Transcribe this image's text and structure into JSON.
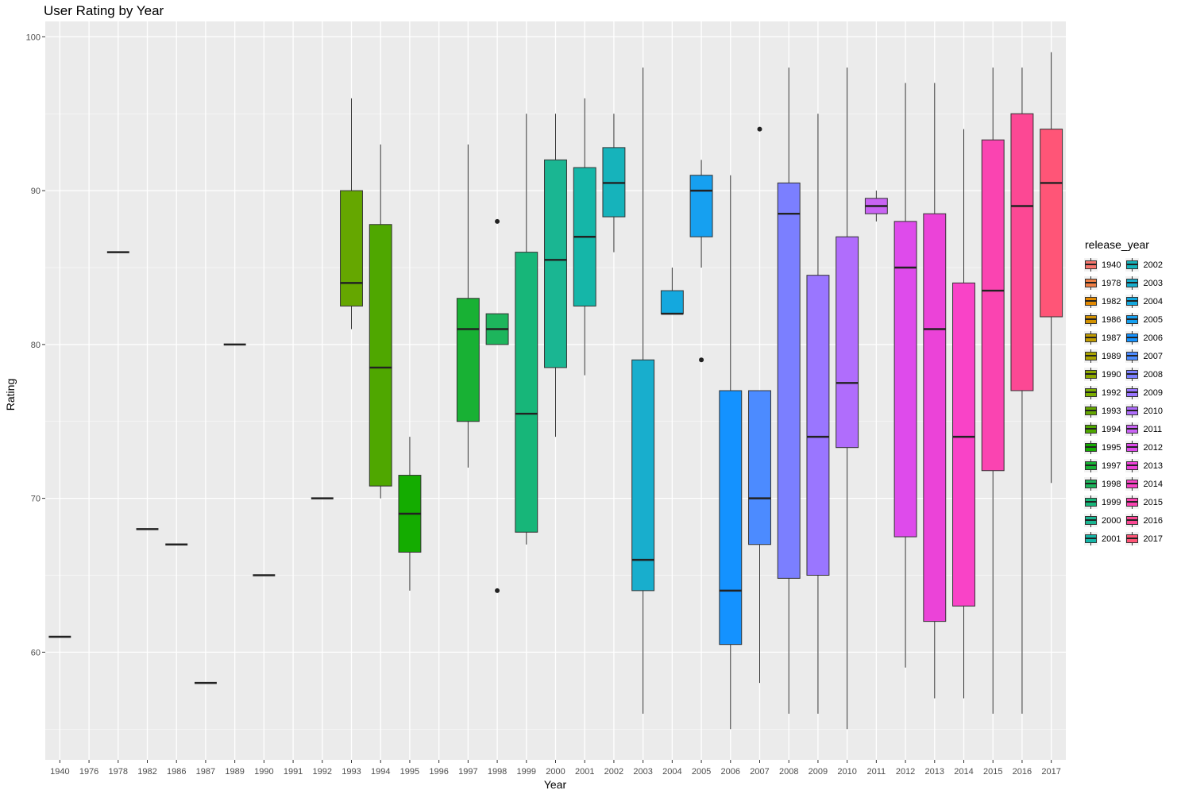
{
  "chart_data": {
    "type": "box",
    "title": "User Rating by Year",
    "xlabel": "Year",
    "ylabel": "Rating",
    "ylim": [
      53,
      101
    ],
    "y_ticks": [
      60,
      70,
      80,
      90,
      100
    ],
    "grid": true,
    "legend_title": "release_year",
    "legend_position": "right",
    "categories": [
      "1940",
      "1976",
      "1978",
      "1982",
      "1986",
      "1987",
      "1989",
      "1990",
      "1991",
      "1992",
      "1993",
      "1994",
      "1995",
      "1996",
      "1997",
      "1998",
      "1999",
      "2000",
      "2001",
      "2002",
      "2003",
      "2004",
      "2005",
      "2006",
      "2007",
      "2008",
      "2009",
      "2010",
      "2011",
      "2012",
      "2013",
      "2014",
      "2015",
      "2016",
      "2017"
    ],
    "legend_entries": [
      "1940",
      "1978",
      "1982",
      "1986",
      "1987",
      "1989",
      "1990",
      "1992",
      "1993",
      "1994",
      "1995",
      "1997",
      "1998",
      "1999",
      "2000",
      "2001",
      "2002",
      "2003",
      "2004",
      "2005",
      "2006",
      "2007",
      "2008",
      "2009",
      "2010",
      "2011",
      "2012",
      "2013",
      "2014",
      "2015",
      "2016",
      "2017"
    ],
    "boxes": [
      {
        "year": "1940",
        "min": 61,
        "q1": 61,
        "median": 61,
        "q3": 61,
        "max": 61,
        "outliers": [],
        "color": "#F8766D"
      },
      {
        "year": "1978",
        "min": 86,
        "q1": 86,
        "median": 86,
        "q3": 86,
        "max": 86,
        "outliers": [],
        "color": "#EF7F45"
      },
      {
        "year": "1982",
        "min": 68,
        "q1": 68,
        "median": 68,
        "q3": 68,
        "max": 68,
        "outliers": [],
        "color": "#E38900"
      },
      {
        "year": "1986",
        "min": 67,
        "q1": 67,
        "median": 67,
        "q3": 67,
        "max": 67,
        "outliers": [],
        "color": "#D39200"
      },
      {
        "year": "1987",
        "min": 58,
        "q1": 58,
        "median": 58,
        "q3": 58,
        "max": 58,
        "outliers": [],
        "color": "#C09B00"
      },
      {
        "year": "1989",
        "min": 80,
        "q1": 80,
        "median": 80,
        "q3": 80,
        "max": 80,
        "outliers": [],
        "color": "#AAA300"
      },
      {
        "year": "1990",
        "min": 65,
        "q1": 65,
        "median": 65,
        "q3": 65,
        "max": 65,
        "outliers": [],
        "color": "#8EA800"
      },
      {
        "year": "1992",
        "min": 70,
        "q1": 70,
        "median": 70,
        "q3": 70,
        "max": 70,
        "outliers": [],
        "color": "#7CAE00"
      },
      {
        "year": "1993",
        "min": 81,
        "q1": 82.5,
        "median": 84,
        "q3": 90,
        "max": 96,
        "outliers": [],
        "color": "#65A700"
      },
      {
        "year": "1994",
        "min": 70,
        "q1": 70.8,
        "median": 78.5,
        "q3": 87.8,
        "max": 93,
        "outliers": [],
        "color": "#4FA700"
      },
      {
        "year": "1995",
        "min": 64,
        "q1": 66.5,
        "median": 69,
        "q3": 71.5,
        "max": 74,
        "outliers": [],
        "color": "#14AC00"
      },
      {
        "year": "1997",
        "min": 72,
        "q1": 75,
        "median": 81,
        "q3": 83,
        "max": 93,
        "outliers": [],
        "color": "#18B134"
      },
      {
        "year": "1998",
        "min": 80,
        "q1": 80,
        "median": 81,
        "q3": 82,
        "max": 82,
        "outliers": [
          64,
          88
        ],
        "color": "#1DB55C"
      },
      {
        "year": "1999",
        "min": 67,
        "q1": 67.8,
        "median": 75.5,
        "q3": 86,
        "max": 95,
        "outliers": [],
        "color": "#17B679"
      },
      {
        "year": "2000",
        "min": 74,
        "q1": 78.5,
        "median": 85.5,
        "q3": 92,
        "max": 95,
        "outliers": [],
        "color": "#1AB692"
      },
      {
        "year": "2001",
        "min": 78,
        "q1": 82.5,
        "median": 87,
        "q3": 91.5,
        "max": 96,
        "outliers": [],
        "color": "#15B6A8"
      },
      {
        "year": "2002",
        "min": 86,
        "q1": 88.3,
        "median": 90.5,
        "q3": 92.8,
        "max": 95,
        "outliers": [],
        "color": "#16B3BB"
      },
      {
        "year": "2003",
        "min": 56,
        "q1": 64,
        "median": 66,
        "q3": 79,
        "max": 98,
        "outliers": [],
        "color": "#18AECD"
      },
      {
        "year": "2004",
        "min": 82,
        "q1": 82,
        "median": 82,
        "q3": 83.5,
        "max": 85,
        "outliers": [],
        "color": "#14A8DE"
      },
      {
        "year": "2005",
        "min": 85,
        "q1": 87,
        "median": 90,
        "q3": 91,
        "max": 92,
        "outliers": [
          79
        ],
        "color": "#16A0F0"
      },
      {
        "year": "2006",
        "min": 55,
        "q1": 60.5,
        "median": 64,
        "q3": 77,
        "max": 91,
        "outliers": [],
        "color": "#1492FF"
      },
      {
        "year": "2007",
        "min": 58,
        "q1": 67,
        "median": 70,
        "q3": 77,
        "max": 77,
        "outliers": [
          94
        ],
        "color": "#4C8BFF"
      },
      {
        "year": "2008",
        "min": 56,
        "q1": 64.8,
        "median": 88.5,
        "q3": 90.5,
        "max": 98,
        "outliers": [],
        "color": "#7B7FFF"
      },
      {
        "year": "2009",
        "min": 56,
        "q1": 65,
        "median": 74,
        "q3": 84.5,
        "max": 95,
        "outliers": [],
        "color": "#9A76FF"
      },
      {
        "year": "2010",
        "min": 55,
        "q1": 73.3,
        "median": 77.5,
        "q3": 87,
        "max": 98,
        "outliers": [],
        "color": "#B06DFC"
      },
      {
        "year": "2011",
        "min": 88,
        "q1": 88.5,
        "median": 89,
        "q3": 89.5,
        "max": 90,
        "outliers": [],
        "color": "#C964F4"
      },
      {
        "year": "2012",
        "min": 59,
        "q1": 67.5,
        "median": 85,
        "q3": 88,
        "max": 97,
        "outliers": [],
        "color": "#DE4BEB"
      },
      {
        "year": "2013",
        "min": 57,
        "q1": 62,
        "median": 81,
        "q3": 88.5,
        "max": 97,
        "outliers": [],
        "color": "#EB43D8"
      },
      {
        "year": "2014",
        "min": 57,
        "q1": 63,
        "median": 74,
        "q3": 84,
        "max": 94,
        "outliers": [],
        "color": "#F943C7"
      },
      {
        "year": "2015",
        "min": 56,
        "q1": 71.8,
        "median": 83.5,
        "q3": 93.3,
        "max": 98,
        "outliers": [],
        "color": "#FA44B1"
      },
      {
        "year": "2016",
        "min": 56,
        "q1": 77,
        "median": 89,
        "q3": 95,
        "max": 98,
        "outliers": [],
        "color": "#FC4894"
      },
      {
        "year": "2017",
        "min": 71,
        "q1": 81.8,
        "median": 90.5,
        "q3": 94,
        "max": 99,
        "outliers": [],
        "color": "#FF5577"
      }
    ]
  }
}
